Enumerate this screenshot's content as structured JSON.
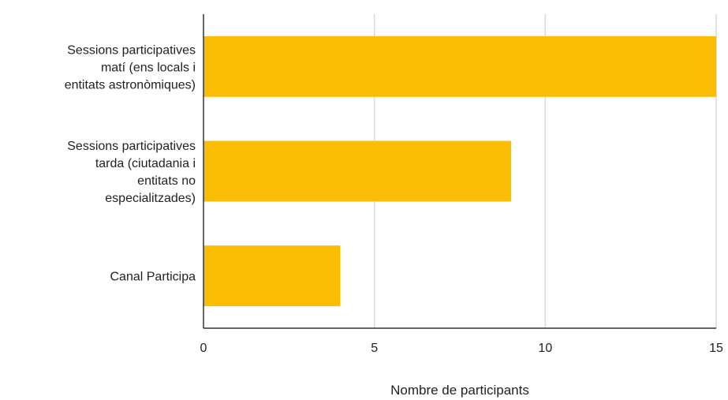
{
  "chart_data": {
    "type": "bar",
    "orientation": "horizontal",
    "categories": [
      [
        "Sessions participatives",
        "matí (ens locals i",
        "entitats astronòmiques)"
      ],
      [
        "Sessions participatives",
        "tarda (ciutadania i",
        "entitats no",
        "especialitzades)"
      ],
      [
        "Canal Participa"
      ]
    ],
    "values": [
      15,
      9,
      4
    ],
    "xlabel": "Nombre de participants",
    "ylabel": "",
    "title": "",
    "xlim": [
      0,
      15
    ],
    "xticks": [
      "0",
      "5",
      "10",
      "15"
    ],
    "grid": true,
    "bar_color": "#FBBC04",
    "grid_color": "#d9d9d9",
    "axis_color": "#333333"
  }
}
